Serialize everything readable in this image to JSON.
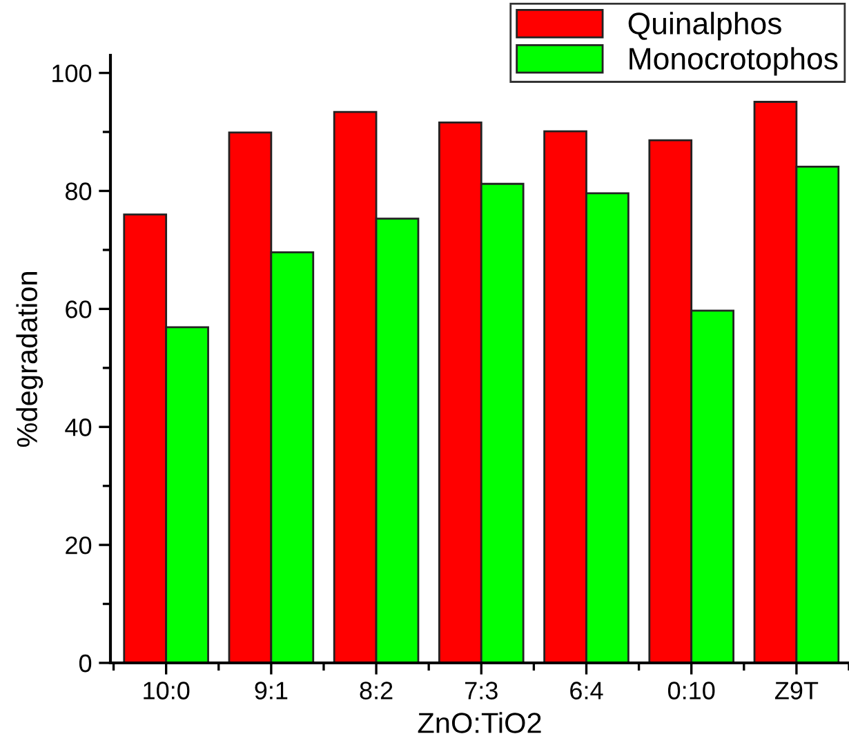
{
  "chart_data": {
    "type": "bar",
    "xlabel": "ZnO:TiO2",
    "ylabel": "%degradation",
    "categories": [
      "10:0",
      "9:1",
      "8:2",
      "7:3",
      "6:4",
      "0:10",
      "Z9T"
    ],
    "series": [
      {
        "name": "Quinalphos",
        "color": "#ff0000",
        "values": [
          76.0,
          89.9,
          93.4,
          91.6,
          90.1,
          88.6,
          95.1
        ]
      },
      {
        "name": "Monocrotophos",
        "color": "#00ff00",
        "values": [
          56.9,
          69.6,
          75.3,
          81.2,
          79.6,
          59.7,
          84.1
        ]
      }
    ],
    "ylim": [
      0,
      103
    ],
    "yticks": [
      0,
      20,
      40,
      60,
      80,
      100
    ],
    "grid": false,
    "legend": "top right"
  }
}
